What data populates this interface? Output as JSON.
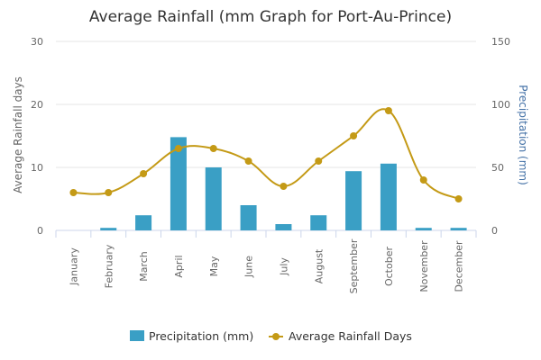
{
  "chart_data": {
    "type": "bar",
    "title": "Average Rainfall (mm Graph for Port-Au-Prince)",
    "categories": [
      "January",
      "February",
      "March",
      "April",
      "May",
      "June",
      "July",
      "August",
      "September",
      "October",
      "November",
      "December"
    ],
    "series": [
      {
        "name": "Precipitation (mm)",
        "type": "bar",
        "axis": "right",
        "color": "#3a9fc5",
        "values": [
          0,
          2,
          12,
          74,
          50,
          20,
          5,
          12,
          47,
          53,
          2,
          2
        ]
      },
      {
        "name": "Average Rainfall Days",
        "type": "line",
        "axis": "left",
        "color": "#c49a16",
        "values": [
          6,
          6,
          9,
          13,
          13,
          11,
          7,
          11,
          15,
          19,
          8,
          5
        ]
      }
    ],
    "y_left": {
      "label": "Average Rainfall days",
      "ylim": [
        0,
        30
      ],
      "ticks": [
        "0",
        "10",
        "20",
        "30"
      ]
    },
    "y_right": {
      "label": "Precipitation (mm)",
      "ylim": [
        0,
        150
      ],
      "ticks": [
        "0",
        "50",
        "100",
        "150"
      ]
    },
    "grid": true,
    "legend": "bottom-center"
  }
}
